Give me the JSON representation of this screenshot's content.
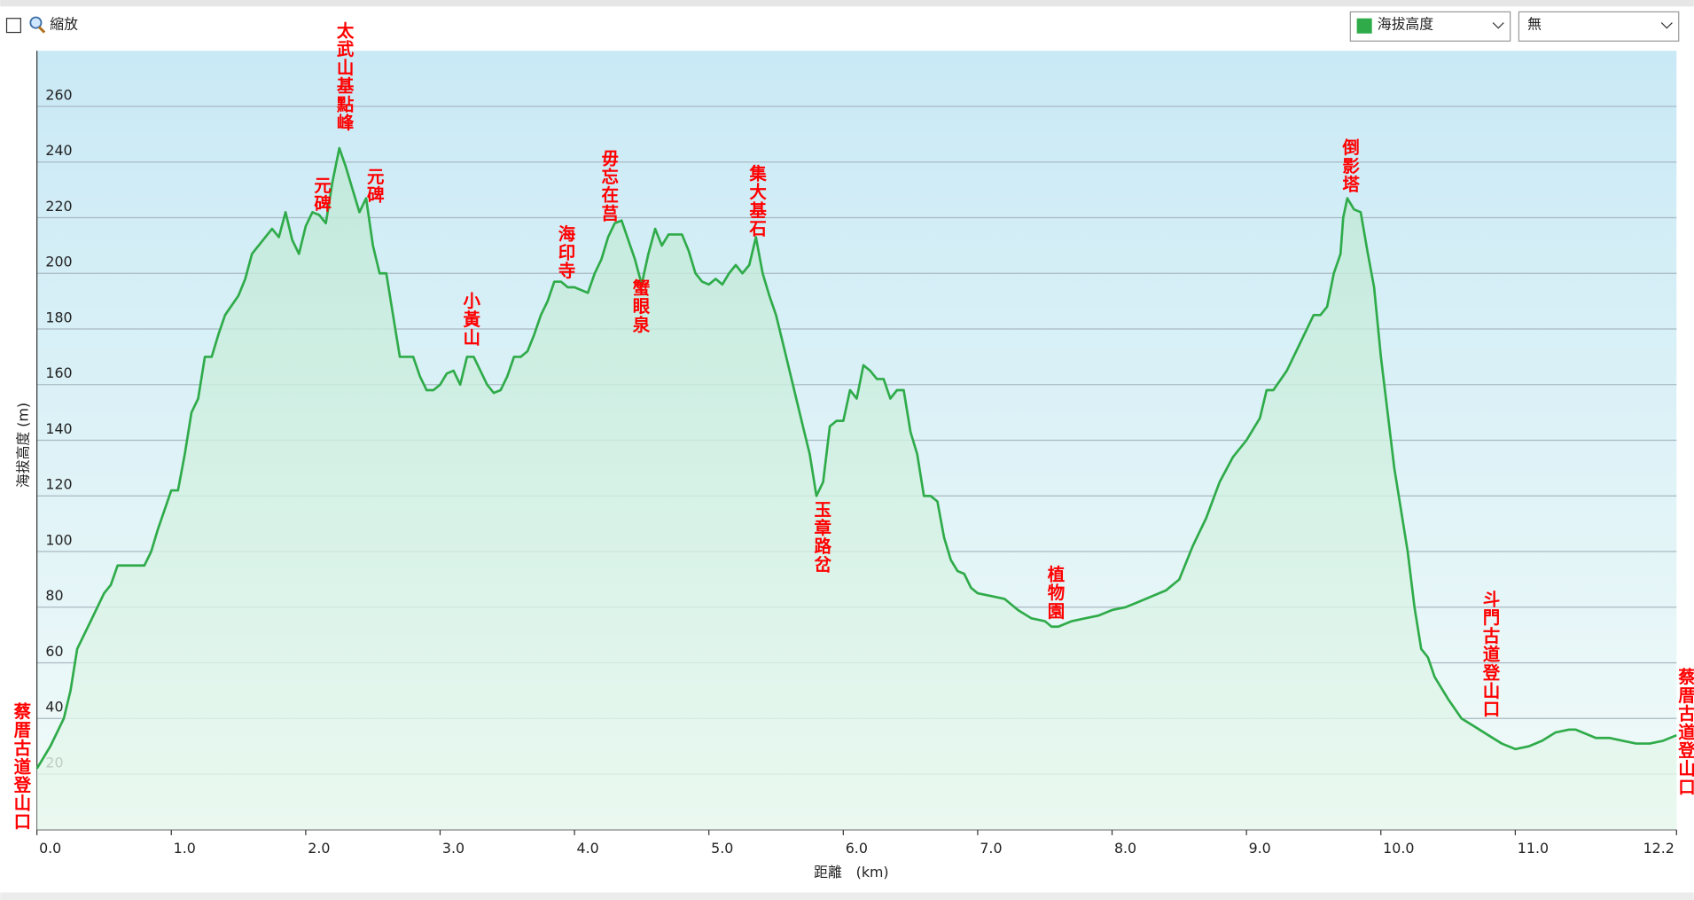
{
  "controls": {
    "zoom": "縮放",
    "second_select": "無"
  },
  "chart_data": {
    "type": "line",
    "xlabel": "距離　(km)",
    "ylabel": "海拔高度 (m)",
    "xlim": [
      0,
      12.2
    ],
    "ylim": [
      0,
      280
    ],
    "xticks": [
      {
        "value": 0,
        "label": "0.0"
      },
      {
        "value": 1,
        "label": "1.0"
      },
      {
        "value": 2,
        "label": "2.0"
      },
      {
        "value": 3,
        "label": "3.0"
      },
      {
        "value": 4,
        "label": "4.0"
      },
      {
        "value": 5,
        "label": "5.0"
      },
      {
        "value": 6,
        "label": "6.0"
      },
      {
        "value": 7,
        "label": "7.0"
      },
      {
        "value": 8,
        "label": "8.0"
      },
      {
        "value": 9,
        "label": "9.0"
      },
      {
        "value": 10,
        "label": "10.0"
      },
      {
        "value": 11,
        "label": "11.0"
      },
      {
        "value": 12.2,
        "label": "12.2"
      }
    ],
    "yticks": [
      20,
      40,
      60,
      80,
      100,
      120,
      140,
      160,
      180,
      200,
      220,
      240,
      260
    ],
    "grid": true,
    "annotations": [
      "蔡厝古道登山口",
      "元碑",
      "太武山基點峰",
      "元碑",
      "小黃山",
      "海印寺",
      "毋忘在莒",
      "蟹眼泉",
      "集大基石",
      "玉章路岔",
      "植物園",
      "倒影塔",
      "斗門古道登山口",
      "蔡厝古道登山口"
    ],
    "x": [
      0.0,
      0.1,
      0.2,
      0.25,
      0.3,
      0.4,
      0.5,
      0.55,
      0.6,
      0.7,
      0.8,
      0.85,
      0.9,
      1.0,
      1.05,
      1.1,
      1.15,
      1.2,
      1.25,
      1.3,
      1.35,
      1.4,
      1.5,
      1.55,
      1.6,
      1.7,
      1.75,
      1.8,
      1.85,
      1.9,
      1.95,
      2.0,
      2.05,
      2.1,
      2.15,
      2.2,
      2.25,
      2.3,
      2.35,
      2.4,
      2.45,
      2.5,
      2.55,
      2.6,
      2.65,
      2.7,
      2.75,
      2.8,
      2.85,
      2.9,
      2.95,
      3.0,
      3.05,
      3.1,
      3.15,
      3.2,
      3.25,
      3.3,
      3.35,
      3.4,
      3.45,
      3.5,
      3.55,
      3.6,
      3.65,
      3.7,
      3.75,
      3.8,
      3.85,
      3.9,
      3.95,
      4.0,
      4.1,
      4.15,
      4.2,
      4.25,
      4.3,
      4.35,
      4.4,
      4.45,
      4.5,
      4.55,
      4.6,
      4.65,
      4.7,
      4.8,
      4.85,
      4.9,
      4.95,
      5.0,
      5.05,
      5.1,
      5.15,
      5.2,
      5.25,
      5.3,
      5.35,
      5.4,
      5.45,
      5.5,
      5.55,
      5.6,
      5.65,
      5.7,
      5.75,
      5.8,
      5.85,
      5.9,
      5.95,
      6.0,
      6.05,
      6.1,
      6.15,
      6.2,
      6.25,
      6.3,
      6.35,
      6.4,
      6.45,
      6.5,
      6.55,
      6.6,
      6.65,
      6.7,
      6.75,
      6.8,
      6.85,
      6.9,
      6.95,
      7.0,
      7.1,
      7.2,
      7.3,
      7.4,
      7.5,
      7.55,
      7.6,
      7.7,
      7.8,
      7.9,
      8.0,
      8.1,
      8.2,
      8.3,
      8.4,
      8.5,
      8.6,
      8.7,
      8.8,
      8.9,
      9.0,
      9.1,
      9.15,
      9.2,
      9.3,
      9.4,
      9.5,
      9.55,
      9.6,
      9.65,
      9.7,
      9.72,
      9.75,
      9.8,
      9.85,
      9.9,
      9.95,
      10.0,
      10.05,
      10.1,
      10.15,
      10.2,
      10.25,
      10.3,
      10.35,
      10.4,
      10.5,
      10.6,
      10.7,
      10.8,
      10.9,
      11.0,
      11.1,
      11.2,
      11.3,
      11.4,
      11.45,
      11.5,
      11.6,
      11.7,
      11.8,
      11.9,
      12.0,
      12.1,
      12.2
    ],
    "series": [
      {
        "name": "海拔高度",
        "color": "#2fab4a",
        "values": [
          22,
          30,
          40,
          50,
          65,
          75,
          85,
          88,
          95,
          95,
          95,
          100,
          108,
          122,
          122,
          135,
          150,
          155,
          170,
          170,
          178,
          185,
          192,
          198,
          207,
          213,
          216,
          213,
          222,
          212,
          207,
          217,
          222,
          221,
          218,
          233,
          245,
          238,
          230,
          222,
          227,
          210,
          200,
          200,
          185,
          170,
          170,
          170,
          163,
          158,
          158,
          160,
          164,
          165,
          160,
          170,
          170,
          165,
          160,
          157,
          158,
          163,
          170,
          170,
          172,
          178,
          185,
          190,
          197,
          197,
          195,
          195,
          193,
          200,
          205,
          213,
          218,
          219,
          212,
          205,
          196,
          207,
          216,
          210,
          214,
          214,
          208,
          200,
          197,
          196,
          198,
          196,
          200,
          203,
          200,
          203,
          213,
          200,
          192,
          185,
          175,
          165,
          155,
          145,
          135,
          120,
          125,
          145,
          147,
          147,
          158,
          155,
          167,
          165,
          162,
          162,
          155,
          158,
          158,
          143,
          135,
          120,
          120,
          118,
          105,
          97,
          93,
          92,
          87,
          85,
          84,
          83,
          79,
          76,
          75,
          73,
          73,
          75,
          76,
          77,
          79,
          80,
          82,
          84,
          86,
          90,
          102,
          112,
          125,
          134,
          140,
          148,
          158,
          158,
          165,
          175,
          185,
          185,
          188,
          200,
          207,
          220,
          227,
          223,
          222,
          208,
          195,
          170,
          150,
          130,
          115,
          100,
          80,
          65,
          62,
          55,
          47,
          40,
          37,
          34,
          31,
          29,
          30,
          32,
          35,
          36,
          36,
          35,
          33,
          33,
          32,
          31,
          31,
          32,
          34
        ]
      }
    ]
  }
}
